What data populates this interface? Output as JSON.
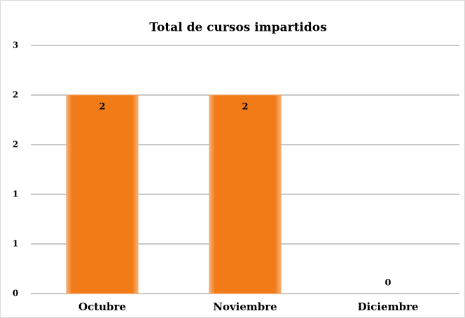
{
  "chart_data": {
    "type": "bar",
    "title": "Total de cursos impartidos",
    "categories": [
      "Octubre",
      "Noviembre",
      "Diciembre"
    ],
    "values": [
      2,
      2,
      0
    ],
    "color": "#f07b17",
    "ylim": [
      0,
      2.5
    ],
    "yticks": [
      0,
      {
        "value": 0.5,
        "label": "1"
      },
      {
        "value": 1,
        "label": "1"
      },
      {
        "value": 1.5,
        "label": "2"
      },
      {
        "value": 2,
        "label": "2"
      },
      {
        "value": 2.5,
        "label": "3"
      }
    ],
    "grid": true
  }
}
